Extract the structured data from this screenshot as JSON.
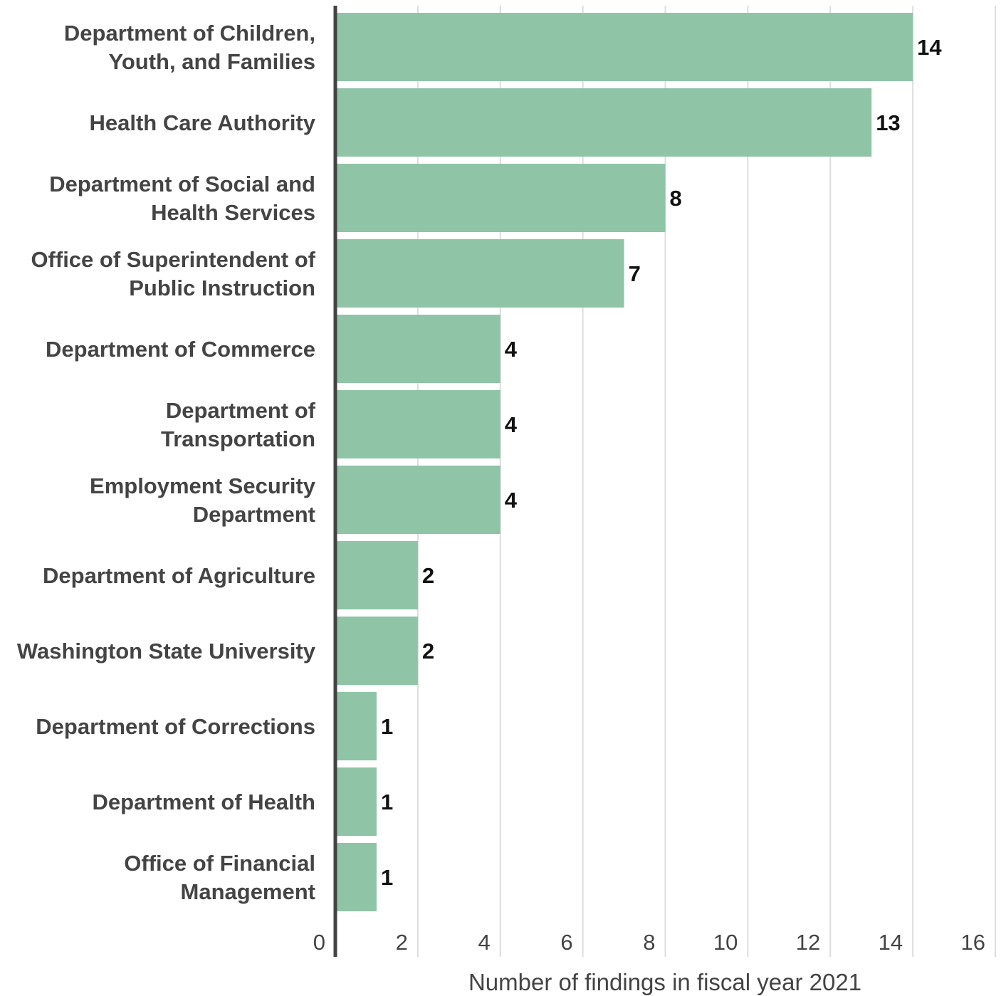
{
  "chart_data": {
    "type": "bar",
    "orientation": "horizontal",
    "categories": [
      [
        "Department of Children,",
        "Youth, and Families"
      ],
      [
        "Health Care Authority"
      ],
      [
        "Department of Social and",
        "Health Services"
      ],
      [
        "Office of Superintendent of",
        "Public Instruction"
      ],
      [
        "Department of Commerce"
      ],
      [
        "Department of",
        "Transportation"
      ],
      [
        "Employment Security",
        "Department"
      ],
      [
        "Department of Agriculture"
      ],
      [
        "Washington State University"
      ],
      [
        "Department of Corrections"
      ],
      [
        "Department of Health"
      ],
      [
        "Office of Financial",
        "Management"
      ]
    ],
    "values": [
      14,
      13,
      8,
      7,
      4,
      4,
      4,
      2,
      2,
      1,
      1,
      1
    ],
    "value_labels": [
      "14",
      "13",
      "8",
      "7",
      "4",
      "4",
      "4",
      "2",
      "2",
      "1",
      "1",
      "1"
    ],
    "xlabel": "Number of findings in fiscal year 2021",
    "ylabel": "",
    "xlim": [
      0,
      16
    ],
    "xticks": [
      0,
      2,
      4,
      6,
      8,
      10,
      12,
      14,
      16
    ],
    "xtick_labels": [
      "0",
      "2",
      "4",
      "6",
      "8",
      "10",
      "12",
      "14",
      "16"
    ],
    "grid": true,
    "bar_color": "#8fc4a7",
    "grid_color": "#dddddd",
    "axis_color": "#444444"
  }
}
